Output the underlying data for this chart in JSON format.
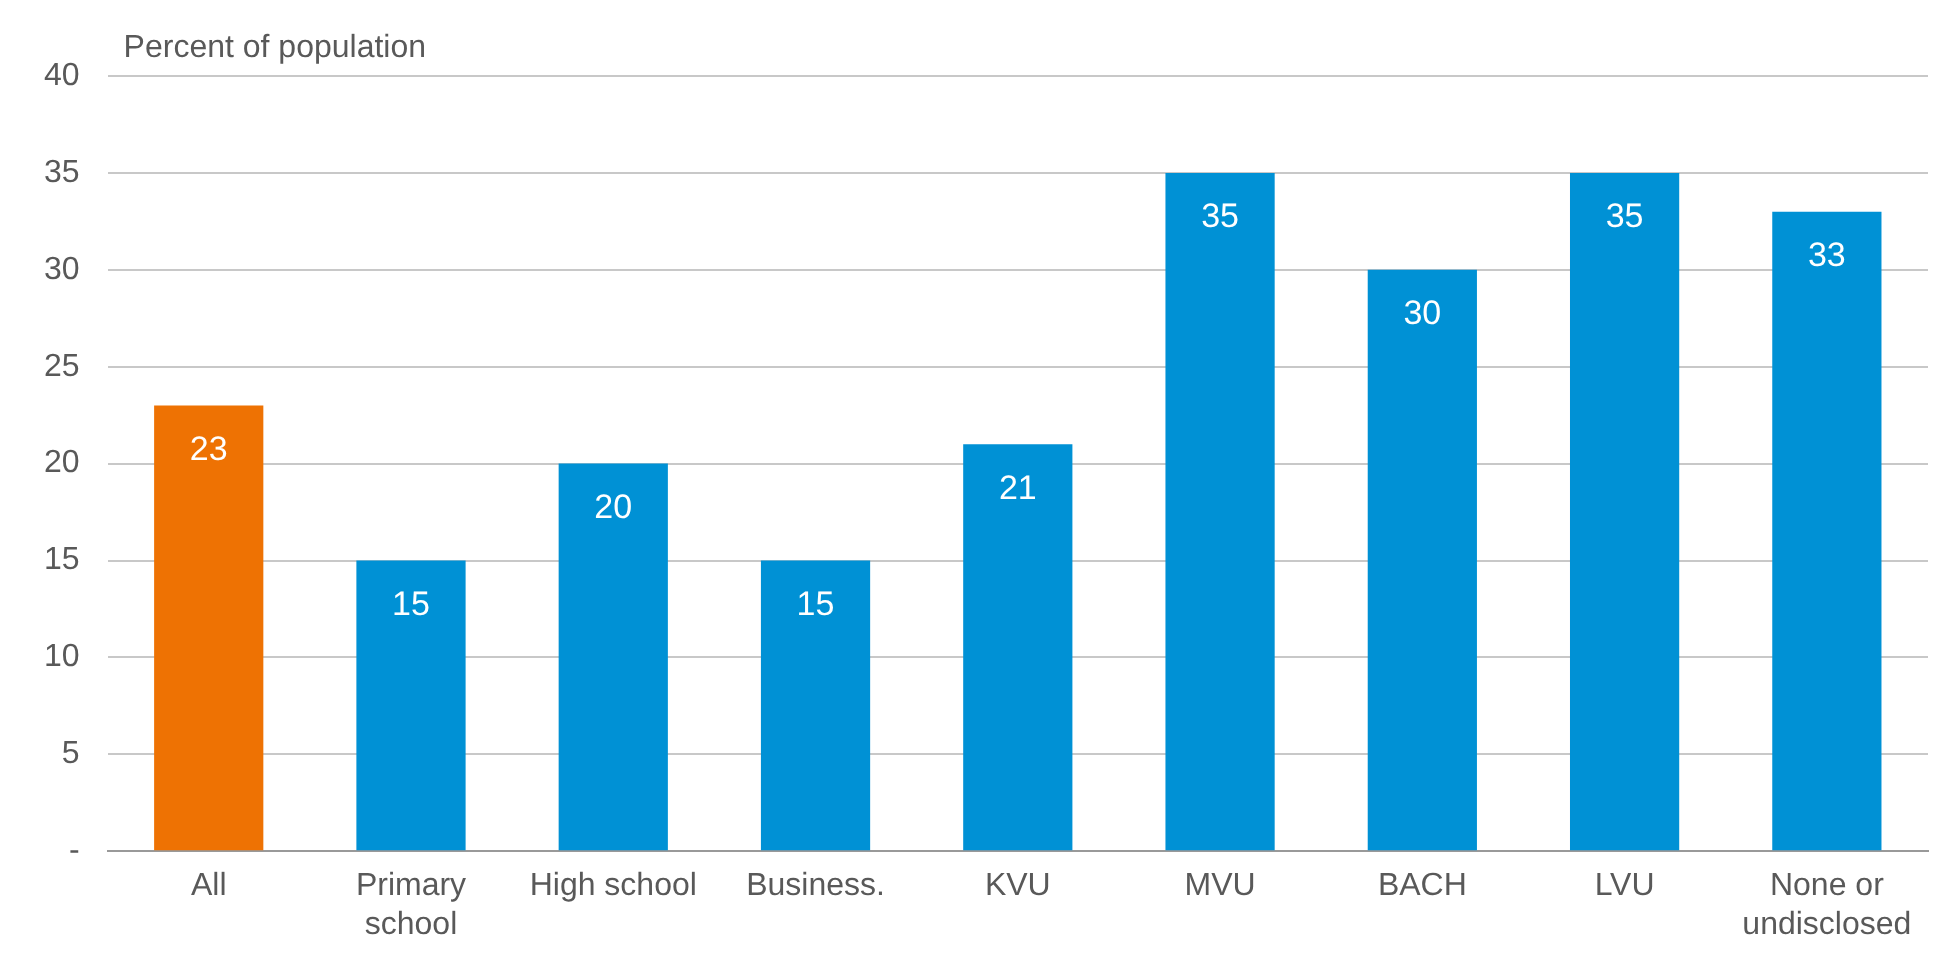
{
  "chart_data": {
    "type": "bar",
    "ylabel": "Percent of population",
    "categories": [
      "All",
      "Primary school",
      "High school",
      "Business.",
      "KVU",
      "MVU",
      "BACH",
      "LVU",
      "None or undisclosed"
    ],
    "values": [
      23,
      15,
      20,
      15,
      21,
      35,
      30,
      35,
      33
    ],
    "colors": [
      "#ee7203",
      "#0091d5",
      "#0091d5",
      "#0091d5",
      "#0091d5",
      "#0091d5",
      "#0091d5",
      "#0091d5",
      "#0091d5"
    ],
    "ylim": [
      0,
      40
    ],
    "yticks": [
      {
        "value": 0,
        "label": "-"
      },
      5,
      10,
      15,
      20,
      25,
      30,
      35,
      40
    ],
    "grid": "y",
    "data_labels": true,
    "legend": false
  }
}
